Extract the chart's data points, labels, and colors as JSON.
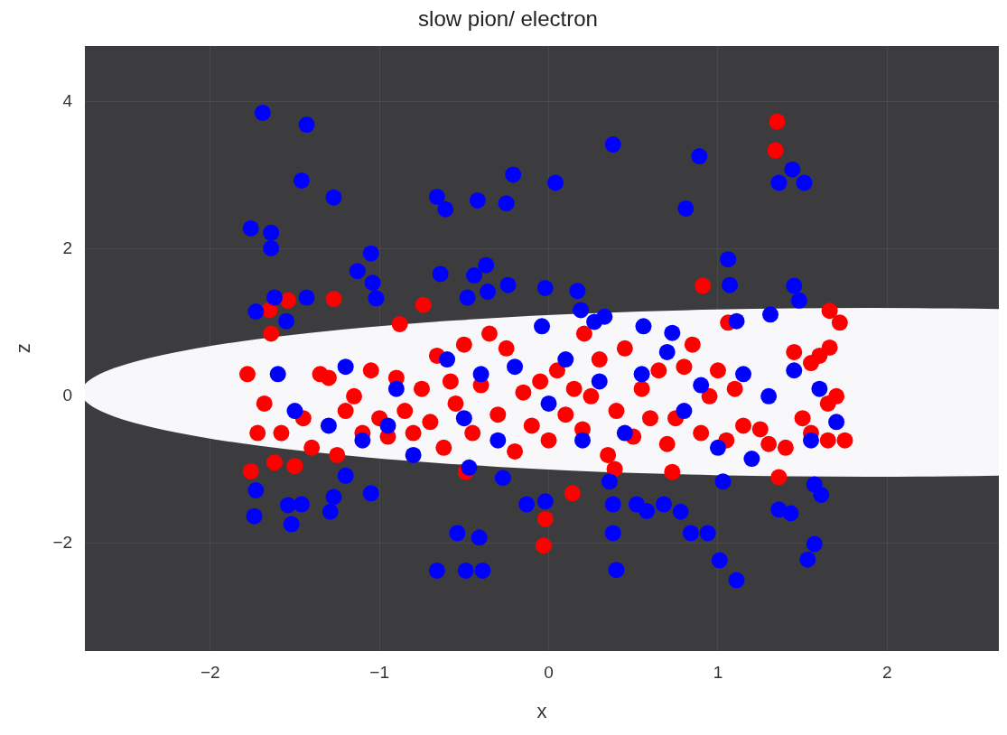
{
  "chart_data": {
    "type": "scatter",
    "title": "slow pion/ electron",
    "xlabel": "x",
    "ylabel": "z",
    "xlim": [
      -2.74,
      2.66
    ],
    "ylim": [
      -3.46,
      4.76
    ],
    "xticks": [
      -2,
      -1,
      0,
      1,
      2
    ],
    "yticks": [
      -2,
      0,
      2,
      4
    ],
    "grid": true,
    "marker": "circle",
    "series": [
      {
        "color": "#0000ff",
        "x": [
          -1.69,
          -1.43,
          -1.46,
          -1.27,
          -1.76,
          -1.64,
          -1.64,
          -0.66,
          -0.61,
          -0.42,
          -0.25,
          -0.21,
          0.04,
          0.38,
          0.89,
          0.81,
          1.36,
          1.44,
          1.51,
          1.06,
          1.07,
          -1.05,
          -1.13,
          -1.04,
          -1.02,
          -0.64,
          -0.44,
          -0.37,
          -0.36,
          -0.48,
          -0.24,
          -0.02,
          -0.04,
          0.17,
          0.19,
          0.27,
          0.33,
          -1.43,
          -1.62,
          -1.73,
          -1.55,
          1.45,
          1.48,
          1.31,
          1.11,
          0.73,
          0.56,
          -1.74,
          -1.73,
          -1.52,
          -1.54,
          -1.46,
          -1.29,
          -1.27,
          -1.05,
          -0.66,
          -0.49,
          -0.54,
          -0.41,
          -0.39,
          -0.13,
          -0.02,
          0.36,
          0.38,
          0.38,
          0.4,
          0.52,
          0.58,
          0.68,
          0.78,
          0.84,
          0.94,
          1.01,
          1.11,
          1.03,
          1.36,
          1.43,
          1.57,
          1.53,
          1.57,
          1.61,
          -1.2,
          -0.47,
          -0.27,
          -1.6,
          -1.5,
          -1.3,
          -1.2,
          -1.1,
          -0.9,
          -0.8,
          -0.6,
          -0.5,
          -0.4,
          -0.3,
          -0.2,
          0.0,
          0.1,
          0.2,
          0.3,
          0.45,
          0.55,
          0.7,
          0.8,
          0.9,
          1.0,
          1.15,
          1.3,
          1.45,
          1.55,
          1.6,
          1.7,
          1.2,
          -0.95
        ],
        "values": [
          3.85,
          3.69,
          2.93,
          2.7,
          2.28,
          2.22,
          2.01,
          2.71,
          2.54,
          2.66,
          2.62,
          3.01,
          2.9,
          3.42,
          3.26,
          2.55,
          2.9,
          3.08,
          2.9,
          1.86,
          1.51,
          1.94,
          1.7,
          1.54,
          1.33,
          1.66,
          1.64,
          1.78,
          1.42,
          1.34,
          1.51,
          1.47,
          0.95,
          1.43,
          1.17,
          1.01,
          1.08,
          1.34,
          1.34,
          1.15,
          1.02,
          1.5,
          1.3,
          1.11,
          1.02,
          0.86,
          0.95,
          -1.63,
          -1.28,
          -1.74,
          -1.48,
          -1.47,
          -1.57,
          -1.37,
          -1.32,
          -2.37,
          -2.37,
          -1.86,
          -1.92,
          -2.37,
          -1.47,
          -1.43,
          -1.16,
          -1.47,
          -1.86,
          -2.36,
          -1.47,
          -1.56,
          -1.47,
          -1.57,
          -1.86,
          -1.86,
          -2.23,
          -2.5,
          -1.16,
          -1.54,
          -1.59,
          -2.01,
          -2.22,
          -1.2,
          -1.34,
          -1.08,
          -0.97,
          -1.11,
          0.3,
          -0.2,
          -0.4,
          0.4,
          -0.6,
          0.1,
          -0.8,
          0.5,
          -0.3,
          0.3,
          -0.6,
          0.4,
          -0.1,
          0.5,
          -0.6,
          0.2,
          -0.5,
          0.3,
          0.6,
          -0.2,
          0.15,
          -0.7,
          0.3,
          0.0,
          0.35,
          -0.6,
          0.1,
          -0.35,
          -0.85,
          -0.4
        ]
      },
      {
        "color": "#ff0000",
        "x": [
          1.35,
          1.34,
          0.91,
          -1.27,
          -0.74,
          -1.54,
          -1.65,
          -0.88,
          -1.64,
          0.21,
          1.06,
          1.66,
          1.72,
          1.66,
          -1.76,
          -0.49,
          0.14,
          -0.02,
          -0.03,
          0.73,
          1.36,
          0.39,
          -1.78,
          -1.72,
          -1.68,
          -1.62,
          -1.58,
          -1.5,
          -1.45,
          -1.4,
          -1.35,
          -1.3,
          -1.25,
          -1.2,
          -1.15,
          -1.1,
          -1.05,
          -1.0,
          -0.95,
          -0.9,
          -0.85,
          -0.8,
          -0.75,
          -0.7,
          -0.66,
          -0.62,
          -0.58,
          -0.55,
          -0.5,
          -0.45,
          -0.4,
          -0.35,
          -0.3,
          -0.25,
          -0.2,
          -0.15,
          -0.1,
          -0.05,
          0.0,
          0.05,
          0.1,
          0.15,
          0.2,
          0.25,
          0.3,
          0.35,
          0.4,
          0.45,
          0.5,
          0.55,
          0.6,
          0.65,
          0.7,
          0.75,
          0.8,
          0.85,
          0.9,
          0.95,
          1.0,
          1.05,
          1.1,
          1.15,
          1.25,
          1.3,
          1.4,
          1.45,
          1.5,
          1.55,
          1.6,
          1.65,
          1.65,
          1.7,
          1.75,
          1.55
        ],
        "values": [
          3.73,
          3.34,
          1.5,
          1.32,
          1.24,
          1.3,
          1.17,
          0.98,
          0.85,
          0.85,
          1.0,
          1.16,
          1.0,
          0.66,
          -1.02,
          -1.03,
          -1.32,
          -1.67,
          -2.03,
          -1.03,
          -1.1,
          -0.99,
          0.3,
          -0.5,
          -0.1,
          -0.9,
          -0.5,
          -0.95,
          -0.3,
          -0.7,
          0.3,
          0.25,
          -0.8,
          -0.2,
          0.0,
          -0.5,
          0.35,
          -0.3,
          -0.55,
          0.25,
          -0.2,
          -0.5,
          0.1,
          -0.35,
          0.55,
          -0.7,
          0.2,
          -0.1,
          0.7,
          -0.5,
          0.15,
          0.85,
          -0.25,
          0.65,
          -0.75,
          0.05,
          -0.4,
          0.2,
          -0.6,
          0.35,
          -0.25,
          0.1,
          -0.45,
          0.0,
          0.5,
          -0.8,
          -0.2,
          0.65,
          -0.55,
          0.1,
          -0.3,
          0.35,
          -0.65,
          -0.3,
          0.4,
          0.7,
          -0.5,
          0.0,
          0.35,
          -0.6,
          0.1,
          -0.4,
          -0.45,
          -0.65,
          -0.7,
          0.6,
          -0.3,
          -0.5,
          0.55,
          -0.1,
          -0.6,
          0.0,
          -0.6,
          0.45
        ]
      }
    ]
  }
}
